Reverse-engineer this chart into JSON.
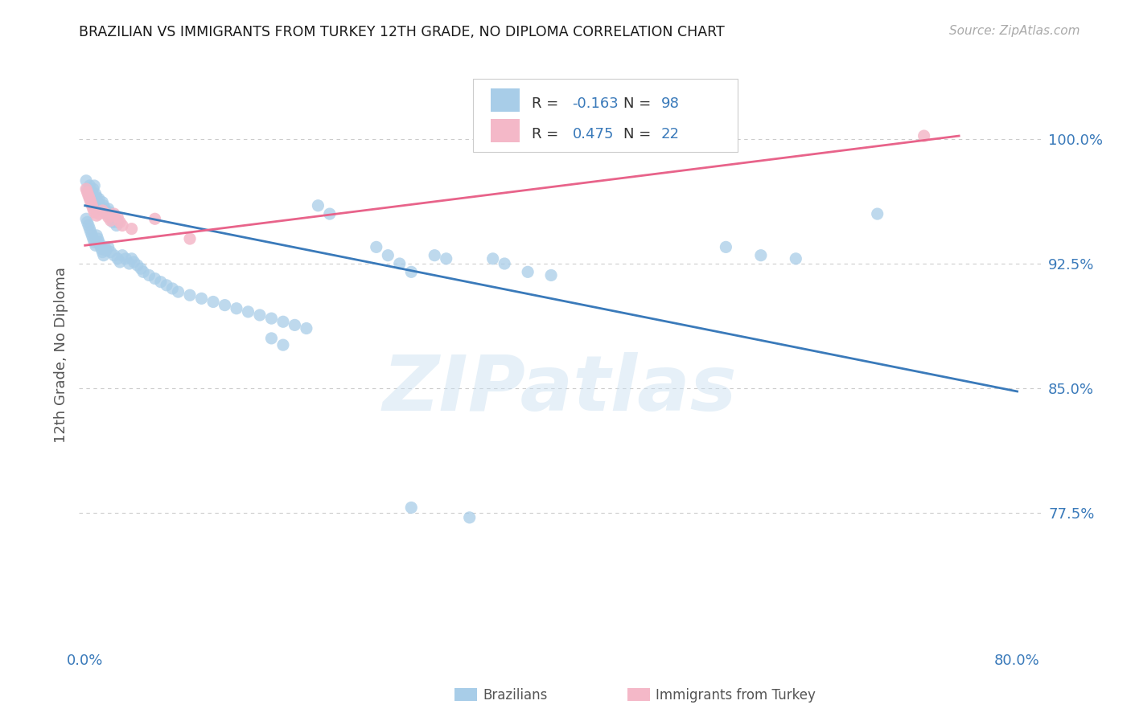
{
  "title": "BRAZILIAN VS IMMIGRANTS FROM TURKEY 12TH GRADE, NO DIPLOMA CORRELATION CHART",
  "source": "Source: ZipAtlas.com",
  "ylabel": "12th Grade, No Diploma",
  "xlim": [
    -0.005,
    0.82
  ],
  "ylim": [
    0.695,
    1.045
  ],
  "xticks": [
    0.0,
    0.1,
    0.2,
    0.3,
    0.4,
    0.5,
    0.6,
    0.7,
    0.8
  ],
  "xticklabels": [
    "0.0%",
    "",
    "",
    "",
    "",
    "",
    "",
    "",
    "80.0%"
  ],
  "yticks": [
    0.775,
    0.85,
    0.925,
    1.0
  ],
  "yticklabels": [
    "77.5%",
    "85.0%",
    "92.5%",
    "100.0%"
  ],
  "blue_r": "-0.163",
  "blue_n": "98",
  "pink_r": "0.475",
  "pink_n": "22",
  "blue_color": "#a8cde8",
  "pink_color": "#f4b8c8",
  "blue_line_color": "#3a7aba",
  "pink_line_color": "#e8638a",
  "watermark": "ZIPatlas",
  "blue_dots": [
    [
      0.001,
      0.975
    ],
    [
      0.002,
      0.97
    ],
    [
      0.003,
      0.968
    ],
    [
      0.004,
      0.972
    ],
    [
      0.004,
      0.965
    ],
    [
      0.005,
      0.966
    ],
    [
      0.006,
      0.968
    ],
    [
      0.007,
      0.97
    ],
    [
      0.008,
      0.972
    ],
    [
      0.009,
      0.967
    ],
    [
      0.01,
      0.965
    ],
    [
      0.01,
      0.96
    ],
    [
      0.011,
      0.962
    ],
    [
      0.012,
      0.964
    ],
    [
      0.013,
      0.96
    ],
    [
      0.014,
      0.958
    ],
    [
      0.015,
      0.962
    ],
    [
      0.016,
      0.96
    ],
    [
      0.017,
      0.958
    ],
    [
      0.018,
      0.956
    ],
    [
      0.019,
      0.955
    ],
    [
      0.02,
      0.958
    ],
    [
      0.021,
      0.956
    ],
    [
      0.022,
      0.954
    ],
    [
      0.023,
      0.952
    ],
    [
      0.024,
      0.95
    ],
    [
      0.025,
      0.954
    ],
    [
      0.026,
      0.952
    ],
    [
      0.027,
      0.948
    ],
    [
      0.028,
      0.95
    ],
    [
      0.001,
      0.952
    ],
    [
      0.002,
      0.95
    ],
    [
      0.003,
      0.948
    ],
    [
      0.004,
      0.946
    ],
    [
      0.005,
      0.944
    ],
    [
      0.006,
      0.942
    ],
    [
      0.007,
      0.94
    ],
    [
      0.008,
      0.938
    ],
    [
      0.009,
      0.936
    ],
    [
      0.01,
      0.942
    ],
    [
      0.011,
      0.94
    ],
    [
      0.012,
      0.938
    ],
    [
      0.013,
      0.936
    ],
    [
      0.014,
      0.934
    ],
    [
      0.015,
      0.932
    ],
    [
      0.016,
      0.93
    ],
    [
      0.017,
      0.935
    ],
    [
      0.018,
      0.933
    ],
    [
      0.02,
      0.935
    ],
    [
      0.022,
      0.932
    ],
    [
      0.025,
      0.93
    ],
    [
      0.028,
      0.928
    ],
    [
      0.03,
      0.926
    ],
    [
      0.032,
      0.93
    ],
    [
      0.035,
      0.928
    ],
    [
      0.038,
      0.925
    ],
    [
      0.04,
      0.928
    ],
    [
      0.042,
      0.926
    ],
    [
      0.045,
      0.924
    ],
    [
      0.048,
      0.922
    ],
    [
      0.05,
      0.92
    ],
    [
      0.055,
      0.918
    ],
    [
      0.06,
      0.916
    ],
    [
      0.065,
      0.914
    ],
    [
      0.07,
      0.912
    ],
    [
      0.075,
      0.91
    ],
    [
      0.08,
      0.908
    ],
    [
      0.09,
      0.906
    ],
    [
      0.1,
      0.904
    ],
    [
      0.11,
      0.902
    ],
    [
      0.12,
      0.9
    ],
    [
      0.13,
      0.898
    ],
    [
      0.14,
      0.896
    ],
    [
      0.15,
      0.894
    ],
    [
      0.16,
      0.892
    ],
    [
      0.17,
      0.89
    ],
    [
      0.18,
      0.888
    ],
    [
      0.19,
      0.886
    ],
    [
      0.2,
      0.96
    ],
    [
      0.21,
      0.955
    ],
    [
      0.25,
      0.935
    ],
    [
      0.26,
      0.93
    ],
    [
      0.27,
      0.925
    ],
    [
      0.28,
      0.92
    ],
    [
      0.3,
      0.93
    ],
    [
      0.31,
      0.928
    ],
    [
      0.35,
      0.928
    ],
    [
      0.36,
      0.925
    ],
    [
      0.38,
      0.92
    ],
    [
      0.4,
      0.918
    ],
    [
      0.55,
      0.935
    ],
    [
      0.58,
      0.93
    ],
    [
      0.61,
      0.928
    ],
    [
      0.68,
      0.955
    ],
    [
      0.16,
      0.88
    ],
    [
      0.17,
      0.876
    ],
    [
      0.28,
      0.778
    ],
    [
      0.33,
      0.772
    ]
  ],
  "pink_dots": [
    [
      0.001,
      0.97
    ],
    [
      0.002,
      0.968
    ],
    [
      0.003,
      0.966
    ],
    [
      0.004,
      0.964
    ],
    [
      0.005,
      0.962
    ],
    [
      0.006,
      0.96
    ],
    [
      0.007,
      0.958
    ],
    [
      0.008,
      0.956
    ],
    [
      0.01,
      0.954
    ],
    [
      0.012,
      0.955
    ],
    [
      0.015,
      0.957
    ],
    [
      0.018,
      0.955
    ],
    [
      0.02,
      0.953
    ],
    [
      0.022,
      0.951
    ],
    [
      0.025,
      0.955
    ],
    [
      0.028,
      0.953
    ],
    [
      0.03,
      0.95
    ],
    [
      0.032,
      0.948
    ],
    [
      0.04,
      0.946
    ],
    [
      0.06,
      0.952
    ],
    [
      0.09,
      0.94
    ],
    [
      0.72,
      1.002
    ]
  ],
  "blue_line_x": [
    0.0,
    0.8
  ],
  "blue_line_y": [
    0.96,
    0.848
  ],
  "pink_line_x": [
    0.0,
    0.75
  ],
  "pink_line_y": [
    0.936,
    1.002
  ],
  "background_color": "#ffffff",
  "grid_color": "#cccccc",
  "title_color": "#1a1a1a",
  "tick_color": "#3a7aba",
  "axis_label_color": "#555555",
  "legend_blue_label": "Brazilians",
  "legend_pink_label": "Immigrants from Turkey"
}
